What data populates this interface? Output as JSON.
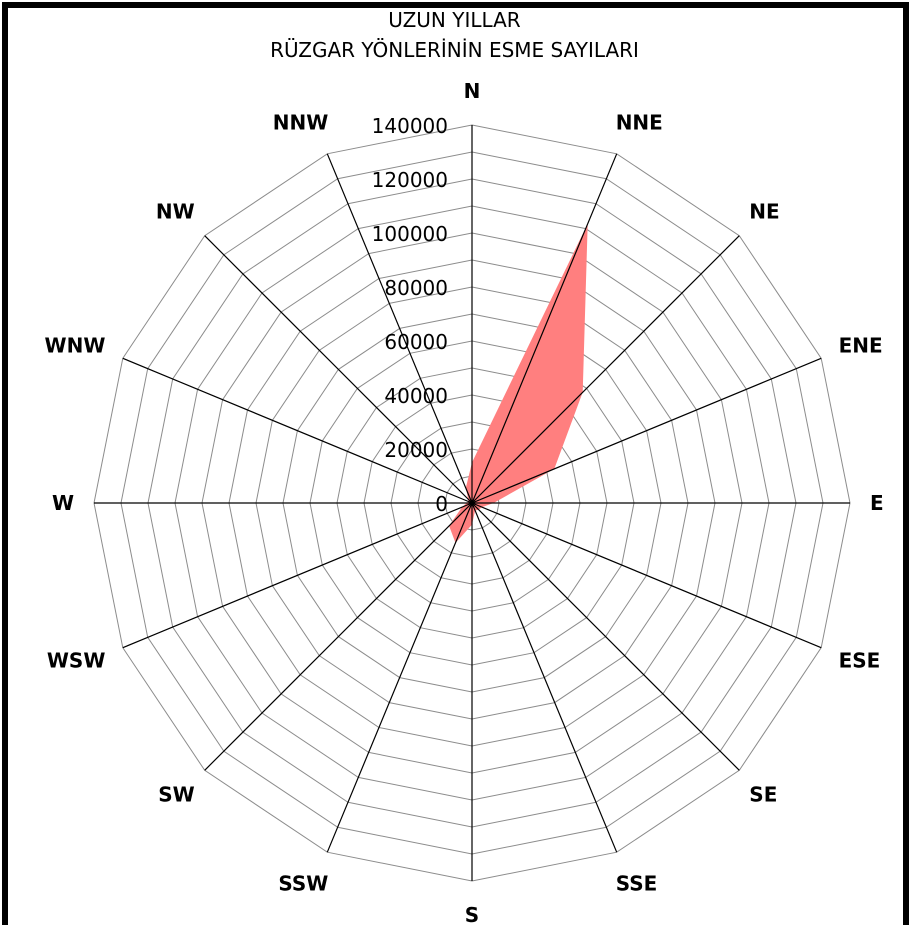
{
  "title_line1": "UZUN YILLAR",
  "title_line2": "RÜZGAR YÖNLERİNİN ESME SAYILARI",
  "chart_data": {
    "type": "radar",
    "title": "UZUN YILLAR RÜZGAR YÖNLERİNİN ESME SAYILARI",
    "directions": [
      "N",
      "NNE",
      "NE",
      "ENE",
      "E",
      "ESE",
      "SE",
      "SSE",
      "S",
      "SSW",
      "SW",
      "WSW",
      "W",
      "WNW",
      "NW",
      "NNW"
    ],
    "values": [
      15000,
      112000,
      58000,
      33000,
      8000,
      4000,
      3500,
      3000,
      8000,
      16000,
      12000,
      4000,
      2000,
      1500,
      2000,
      6000
    ],
    "rlim": [
      0,
      140000
    ],
    "rticks": [
      0,
      20000,
      40000,
      60000,
      80000,
      100000,
      120000,
      140000
    ],
    "rtick_labels": [
      "0",
      "20000",
      "40000",
      "60000",
      "80000",
      "100000",
      "120000",
      "140000"
    ],
    "fill_color": "#ff7f7f",
    "grid": true
  }
}
